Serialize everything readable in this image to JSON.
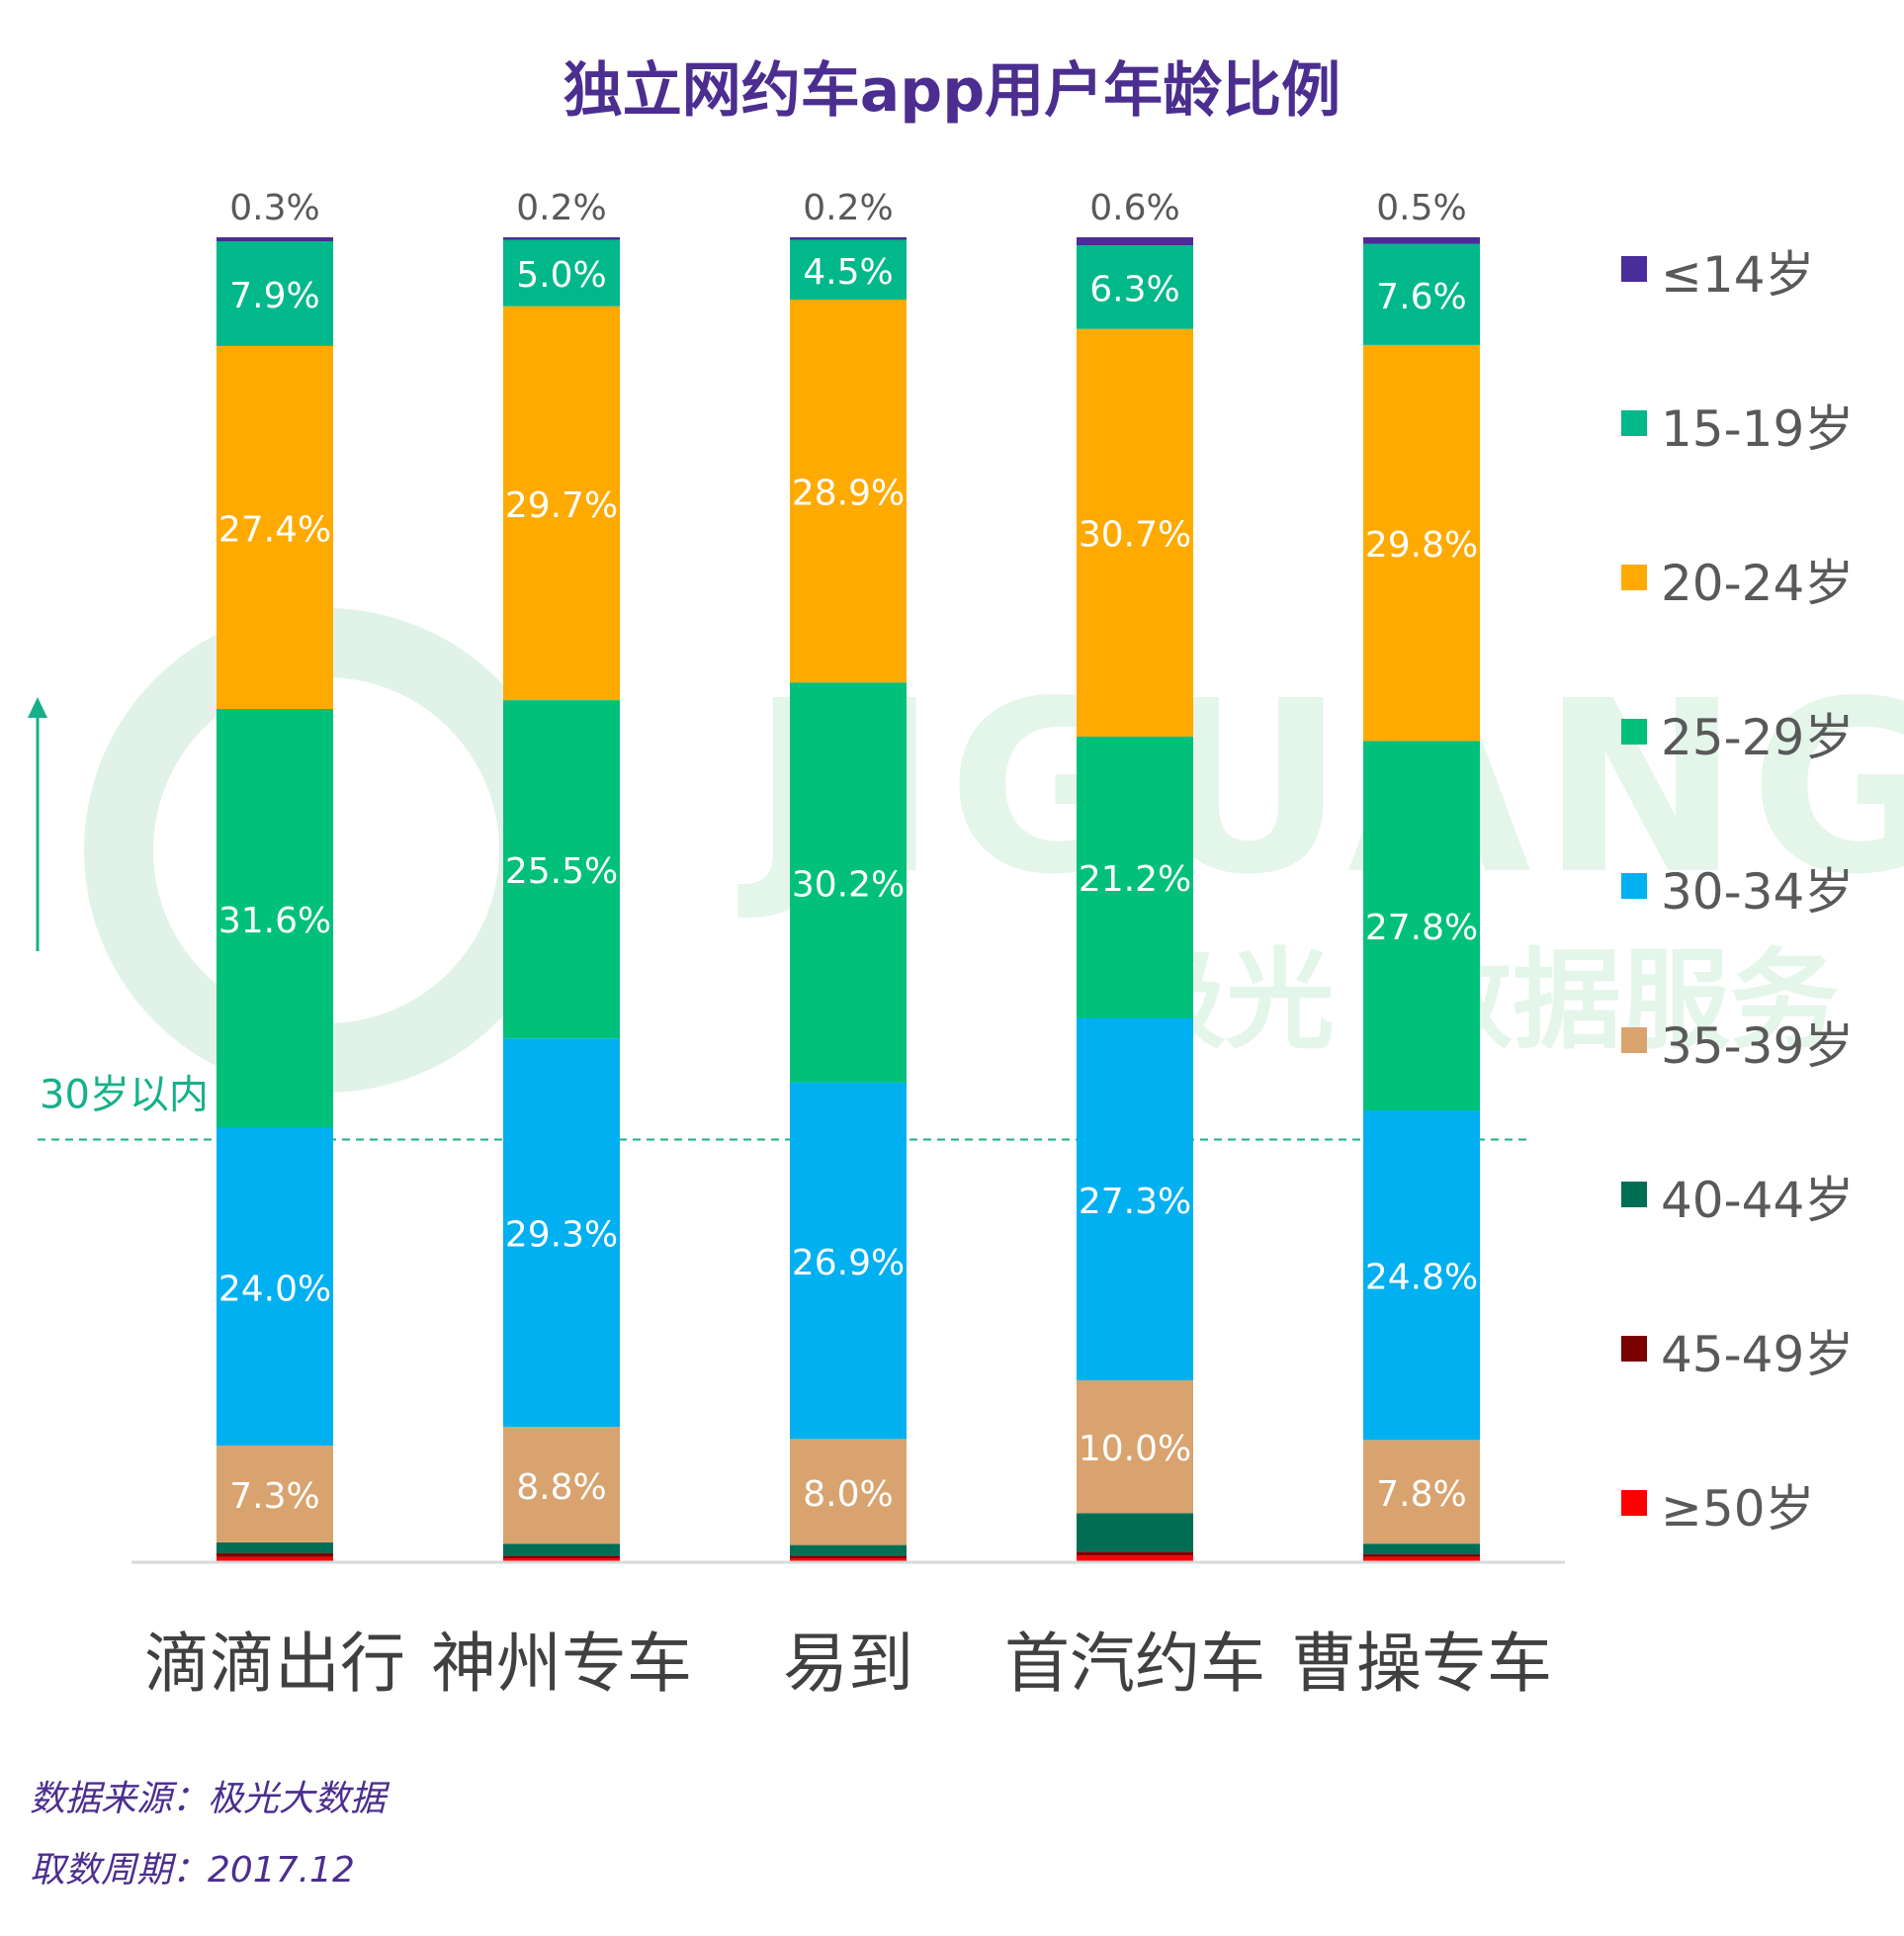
{
  "chart_data": {
    "type": "bar",
    "stacked": true,
    "title": "独立网约车app用户年龄比例",
    "categories": [
      "滴滴出行",
      "神州专车",
      "易到",
      "首汽约车",
      "曹操专车"
    ],
    "series": [
      {
        "name": "≥50岁",
        "color": "#ff0000",
        "values": [
          0.4,
          0.3,
          0.3,
          0.5,
          0.4
        ],
        "labels": [
          "",
          "",
          "",
          "",
          ""
        ]
      },
      {
        "name": "45-49岁",
        "color": "#7b0000",
        "values": [
          0.3,
          0.2,
          0.2,
          0.3,
          0.2
        ],
        "labels": [
          "",
          "",
          "",
          "",
          ""
        ]
      },
      {
        "name": "40-44岁",
        "color": "#006e55",
        "values": [
          0.8,
          0.9,
          0.8,
          2.9,
          0.8
        ],
        "labels": [
          "",
          "",
          "",
          "",
          ""
        ]
      },
      {
        "name": "35-39岁",
        "color": "#d9a36f",
        "values": [
          7.3,
          8.8,
          8.0,
          10.0,
          7.8
        ],
        "labels": [
          "7.3%",
          "8.8%",
          "8.0%",
          "10.0%",
          "7.8%"
        ]
      },
      {
        "name": "30-34岁",
        "color": "#00b0f0",
        "values": [
          24.0,
          29.3,
          26.9,
          27.3,
          24.8
        ],
        "labels": [
          "24.0%",
          "29.3%",
          "26.9%",
          "27.3%",
          "24.8%"
        ]
      },
      {
        "name": "25-29岁",
        "color": "#00c07a",
        "values": [
          31.6,
          25.5,
          30.2,
          21.2,
          27.8
        ],
        "labels": [
          "31.6%",
          "25.5%",
          "30.2%",
          "21.2%",
          "27.8%"
        ]
      },
      {
        "name": "20-24岁",
        "color": "#ffaa00",
        "values": [
          27.4,
          29.7,
          28.9,
          30.7,
          29.8
        ],
        "labels": [
          "27.4%",
          "29.7%",
          "28.9%",
          "30.7%",
          "29.8%"
        ]
      },
      {
        "name": "15-19岁",
        "color": "#00b88a",
        "values": [
          7.9,
          5.0,
          4.5,
          6.3,
          7.6
        ],
        "labels": [
          "7.9%",
          "5.0%",
          "4.5%",
          "6.3%",
          "7.6%"
        ]
      },
      {
        "name": "≤14岁",
        "color": "#4a2c9b",
        "values": [
          0.3,
          0.2,
          0.2,
          0.6,
          0.5
        ],
        "labels": [
          "0.3%",
          "0.2%",
          "0.2%",
          "0.6%",
          "0.5%"
        ]
      }
    ],
    "ylim": [
      0,
      100
    ],
    "legend_position": "right",
    "annotation": {
      "text": "30岁以内"
    }
  },
  "watermark": {
    "word": "JIGUANG",
    "cn_left": "极光",
    "cn_right": "数据服务"
  },
  "footer": {
    "source": "数据来源：极光大数据",
    "period": "取数周期：2017.12"
  },
  "colors": {
    "title": "#4b2e8f",
    "annotation": "#17b08a",
    "watermark": "#dff3e8"
  }
}
